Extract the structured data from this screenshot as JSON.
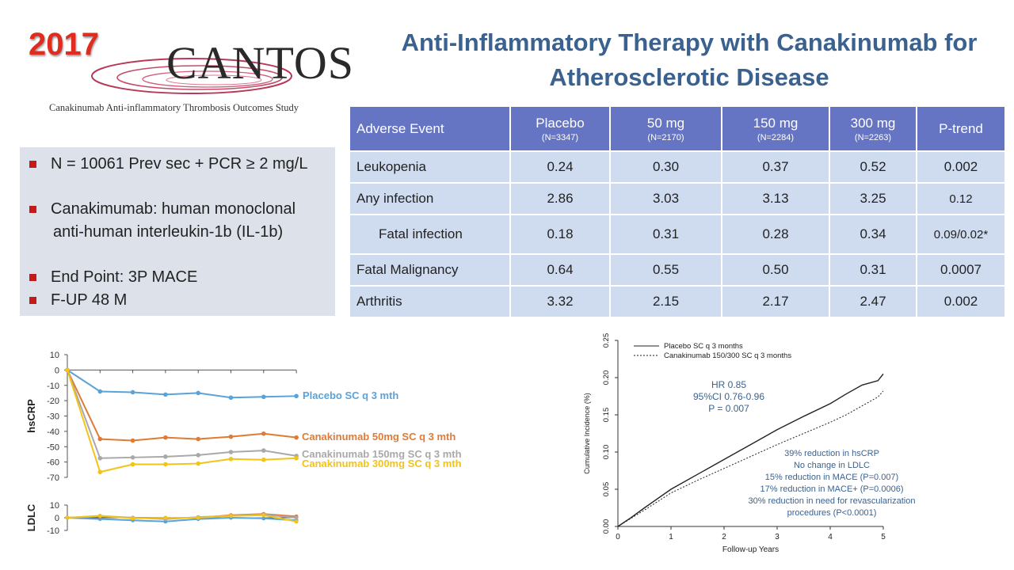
{
  "header": {
    "year": "2017",
    "logo_word": "CANTOS",
    "logo_subtitle": "Canakinumab Anti-inflammatory Thrombosis Outcomes Study",
    "title_line1": "Anti-Inflammatory Therapy with Canakinumab for",
    "title_line2": "Atherosclerotic Disease"
  },
  "info_bullets": [
    "N = 10061 Prev sec + PCR ≥ 2 mg/L",
    "Canakimumab: human monoclonal",
    "anti-human interleukin-1b (IL-1b)",
    "End Point: 3P MACE",
    "F-UP 48 M"
  ],
  "colors": {
    "title": "#3b628f",
    "year": "#e02b1f",
    "table_header": "#6674c4",
    "table_cell": "#cfdcf0",
    "info_box": "#dce1ea",
    "bullet": "#c51a1a",
    "placebo": "#5aa3d8",
    "dose_50": "#e07b35",
    "dose_150": "#a9a9a9",
    "dose_300": "#f2c318"
  },
  "table": {
    "headers": [
      {
        "label": "Adverse Event",
        "n": ""
      },
      {
        "label": "Placebo",
        "n": "(N=3347)"
      },
      {
        "label": "50 mg",
        "n": "(N=2170)"
      },
      {
        "label": "150 mg",
        "n": "(N=2284)"
      },
      {
        "label": "300 mg",
        "n": "(N=2263)"
      },
      {
        "label": "P-trend",
        "n": ""
      }
    ],
    "rows": [
      [
        "Leukopenia",
        "0.24",
        "0.30",
        "0.37",
        "0.52",
        "0.002"
      ],
      [
        "Any infection",
        "2.86",
        "3.03",
        "3.13",
        "3.25",
        "0.12"
      ],
      [
        "Fatal infection",
        "0.18",
        "0.31",
        "0.28",
        "0.34",
        "0.09/0.02*"
      ],
      [
        "Fatal Malignancy",
        "0.64",
        "0.55",
        "0.50",
        "0.31",
        "0.0007"
      ],
      [
        "Arthritis",
        "3.32",
        "2.15",
        "2.17",
        "2.47",
        "0.002"
      ]
    ]
  },
  "chart_data": [
    {
      "type": "line",
      "ylabel": "hsCRP",
      "ylim": [
        -70,
        10
      ],
      "yticks": [
        "10",
        "0",
        "-10",
        "-20",
        "-30",
        "-40",
        "-50",
        "-60",
        "-70"
      ],
      "series": [
        {
          "name": "Placebo SC q 3 mth",
          "values": [
            0,
            -14,
            -14.5,
            -16,
            -15,
            -18,
            -17.5,
            -17
          ]
        },
        {
          "name": "Canakinumab  50mg SC q 3 mth",
          "values": [
            0,
            -45,
            -46,
            -44,
            -45,
            -43.5,
            -41.5,
            -44
          ]
        },
        {
          "name": "Canakinumab  150mg SC q 3 mth",
          "values": [
            0,
            -57.5,
            -57,
            -56.5,
            -55.5,
            -53.5,
            -52.5,
            -56
          ]
        },
        {
          "name": "Canakinumab  300mg SC q 3 mth",
          "values": [
            0,
            -66.5,
            -61.5,
            -61.5,
            -61,
            -58,
            -58.5,
            -57.5
          ]
        }
      ]
    },
    {
      "type": "line",
      "ylabel": "LDLC",
      "ylim": [
        -10,
        10
      ],
      "yticks": [
        "10",
        "0",
        "-10"
      ],
      "series": [
        {
          "name": "Placebo",
          "values": [
            0,
            -1,
            -2,
            -3,
            -1,
            0,
            -0.5,
            -2
          ]
        },
        {
          "name": "Canakinumab 50mg",
          "values": [
            0,
            1,
            0,
            0,
            0,
            2,
            3,
            1
          ]
        },
        {
          "name": "Canakinumab 150mg",
          "values": [
            0,
            1.5,
            0,
            -1,
            0.5,
            1.5,
            2.5,
            0
          ]
        },
        {
          "name": "Canakinumab 300mg",
          "values": [
            0,
            1.5,
            -0.5,
            0,
            0,
            1.5,
            2,
            -3
          ]
        }
      ]
    },
    {
      "type": "line",
      "xlabel": "Follow-up Years",
      "ylabel": "Cumulative Incidence (%)",
      "xlim": [
        0,
        5
      ],
      "ylim": [
        0,
        0.25
      ],
      "xticks": [
        "0",
        "1",
        "2",
        "3",
        "4",
        "5"
      ],
      "yticks": [
        "0.00",
        "0.05",
        "0.10",
        "0.15",
        "0.20",
        "0.25"
      ],
      "legend": "top-left",
      "series": [
        {
          "name": "Placebo SC q 3 months",
          "style": "solid",
          "x": [
            0,
            0.25,
            0.5,
            1,
            1.5,
            2,
            2.5,
            3,
            3.5,
            4,
            4.3,
            4.6,
            4.9,
            5
          ],
          "y": [
            0,
            0.012,
            0.025,
            0.05,
            0.07,
            0.09,
            0.11,
            0.13,
            0.148,
            0.165,
            0.178,
            0.19,
            0.196,
            0.205
          ]
        },
        {
          "name": "Canakinumab 150/300 SC q 3 months",
          "style": "dashed",
          "x": [
            0,
            0.25,
            0.5,
            1,
            1.5,
            2,
            2.5,
            3,
            3.5,
            4,
            4.3,
            4.6,
            4.9,
            5
          ],
          "y": [
            0,
            0.011,
            0.022,
            0.045,
            0.062,
            0.078,
            0.094,
            0.11,
            0.125,
            0.14,
            0.15,
            0.162,
            0.174,
            0.182
          ]
        }
      ],
      "annotations": {
        "stats": [
          "HR 0.85",
          "95%CI 0.76-0.96",
          "P = 0.007"
        ],
        "notes": [
          "39% reduction in hsCRP",
          "No change in LDLC",
          "15% reduction in MACE (P=0.007)",
          "17% reduction in MACE+ (P=0.0006)",
          "30% reduction in need for revascularization",
          "procedures (P<0.0001)"
        ]
      }
    }
  ]
}
